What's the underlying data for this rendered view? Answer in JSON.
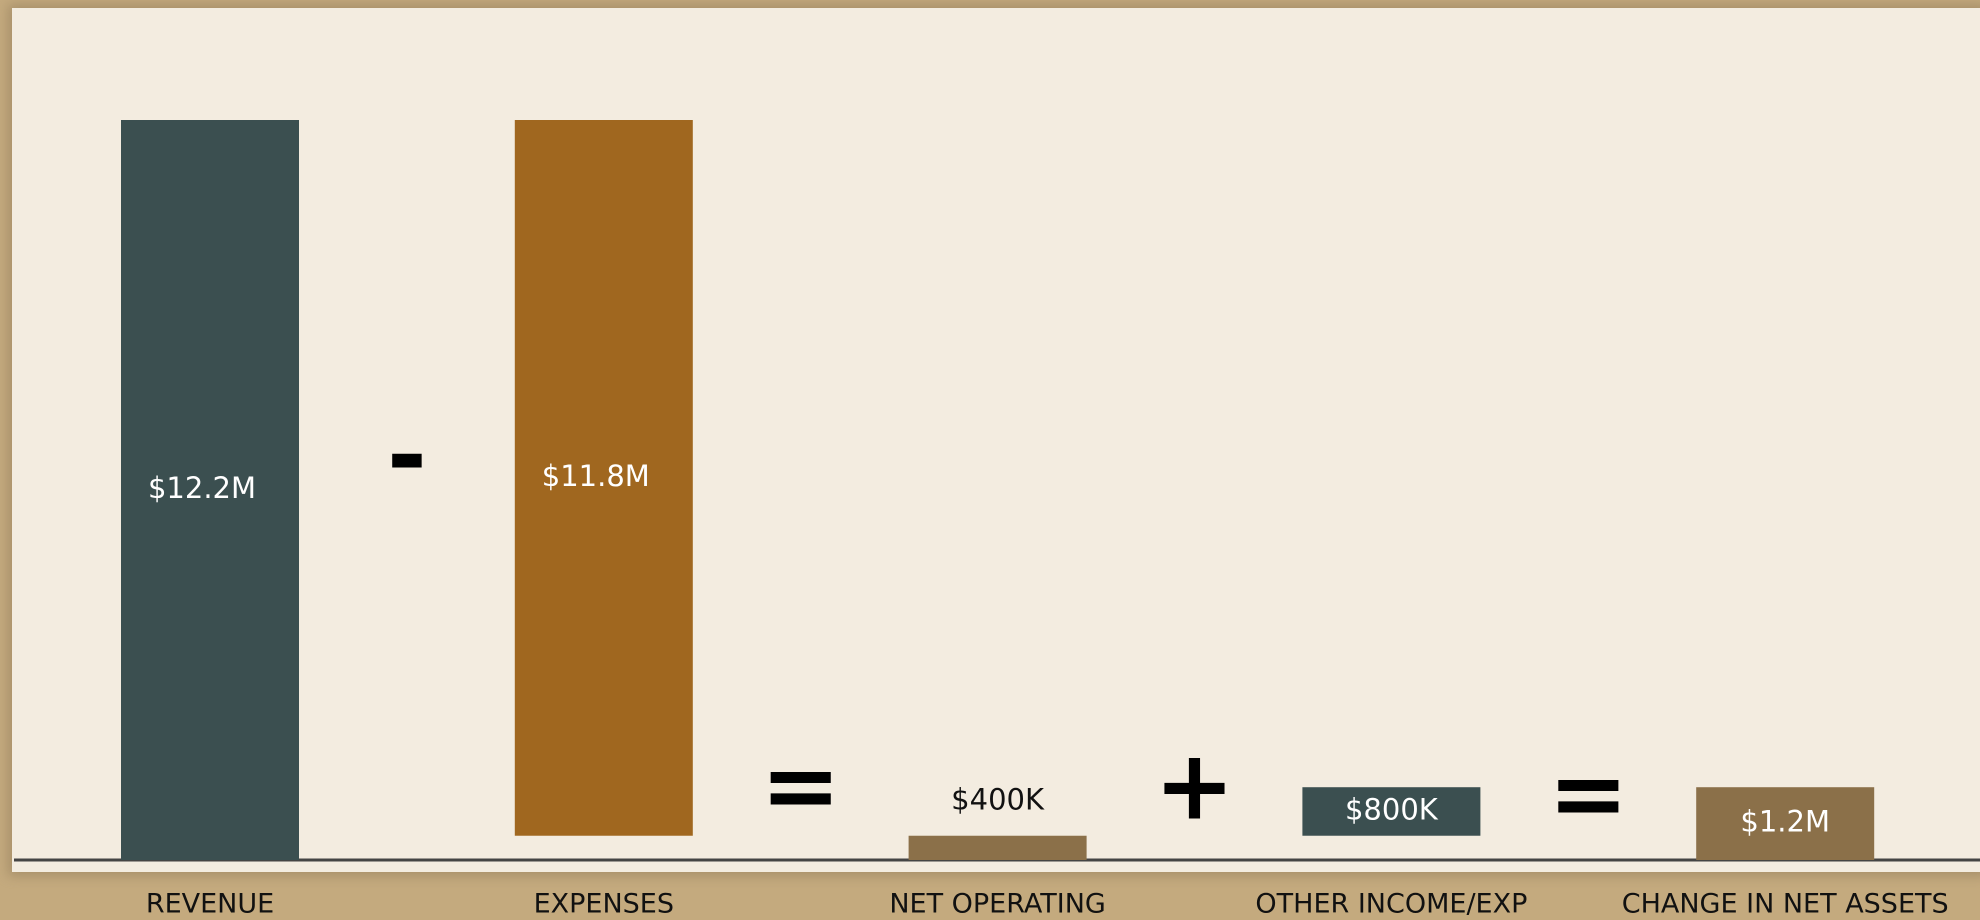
{
  "chart_data": {
    "type": "waterfall",
    "categories": [
      "REVENUE",
      "EXPENSES",
      "NET OPERATING",
      "OTHER INCOME/EXP",
      "CHANGE IN NET ASSETS"
    ],
    "values": [
      12200000,
      11800000,
      400000,
      800000,
      1200000
    ],
    "value_labels": [
      "$12.2M",
      "$11.8M",
      "$400K",
      "$800K",
      "$1.2M"
    ],
    "measure": [
      "total",
      "decrease",
      "total",
      "increase",
      "total"
    ],
    "colors": [
      "#3b4f50",
      "#a0671f",
      "#8b7049",
      "#3b4f50",
      "#8b7049"
    ],
    "operators": [
      "-",
      "=",
      "+",
      "="
    ]
  }
}
